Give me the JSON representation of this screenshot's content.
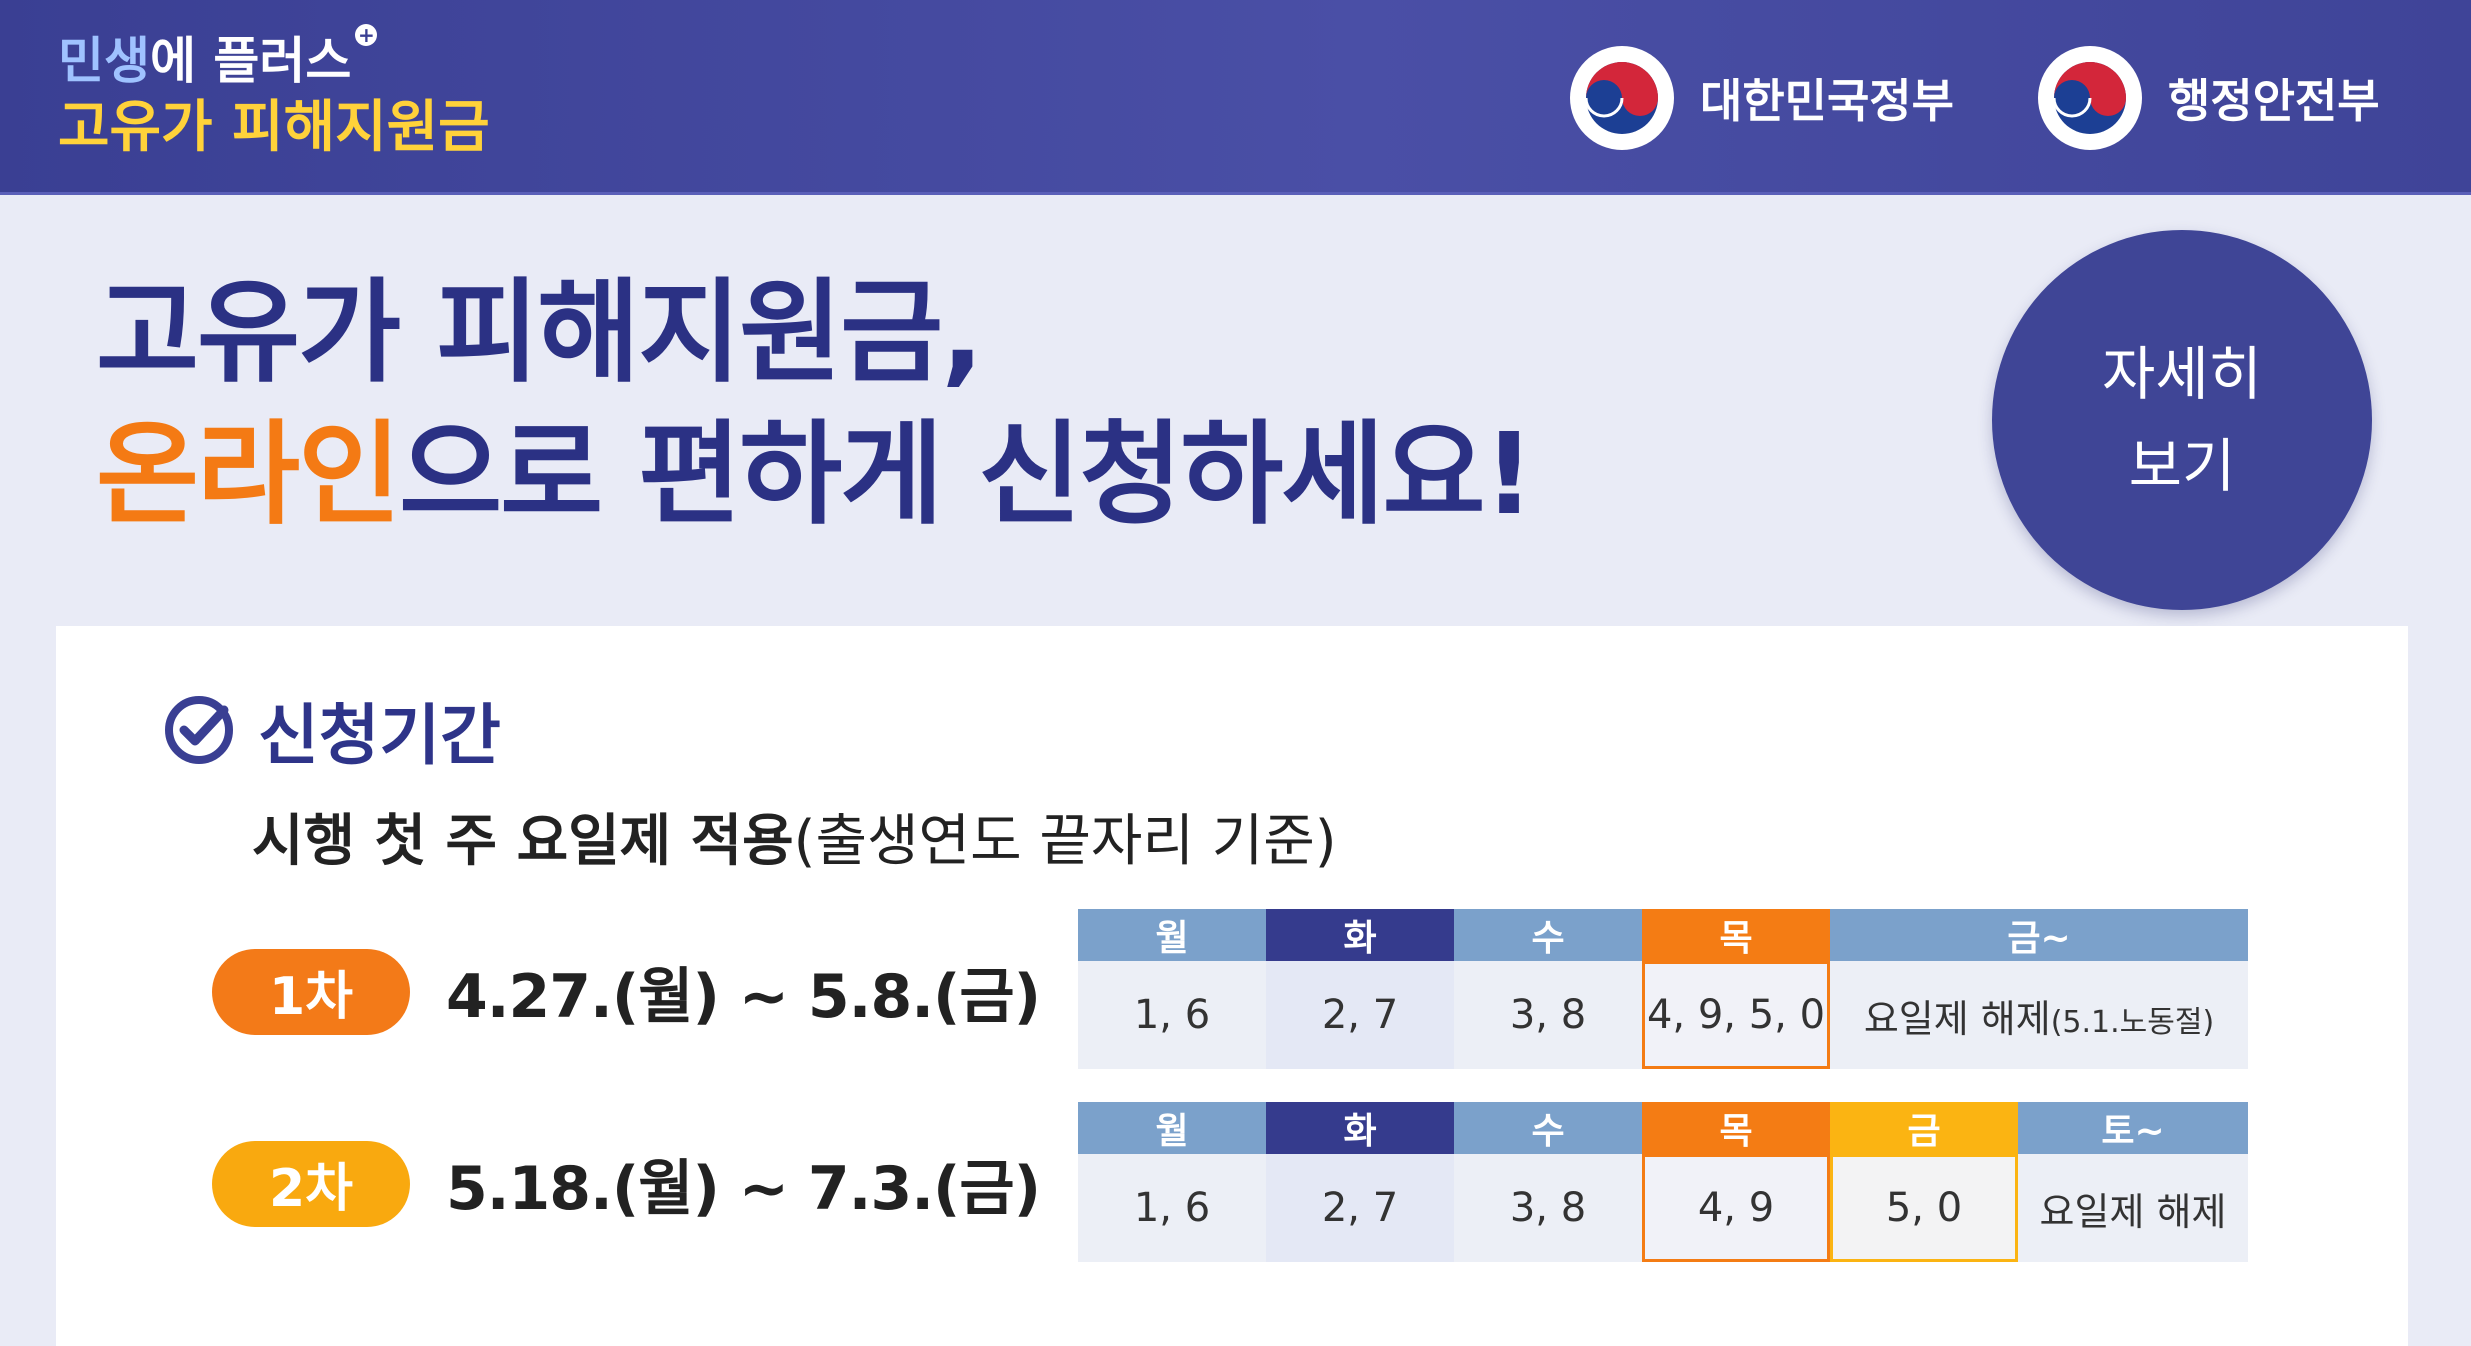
{
  "header": {
    "brand_part1": "민생",
    "brand_part2": "에 플러스",
    "brand_plus": "+",
    "brand_subtitle": "고유가 피해지원금",
    "gov_labels": [
      "대한민국정부",
      "행정안전부"
    ]
  },
  "headline": {
    "line1": "고유가 피해지원금,",
    "line2_highlight": "온라인",
    "line2_rest": "으로 편하게 신청하세요!"
  },
  "detail_button": {
    "line1": "자세히",
    "line2": "보기"
  },
  "section": {
    "title": "신청기간",
    "subtitle_bold": "시행 첫 주 요일제 적용",
    "subtitle_rest": "(출생연도 끝자리 기준)"
  },
  "rounds": [
    {
      "label": "1차",
      "period": "4.27.(월) ~ 5.8.(금)",
      "days": [
        "월",
        "화",
        "수",
        "목",
        "금~"
      ],
      "digits": [
        "1, 6",
        "2, 7",
        "3, 8",
        "4, 9, 5, 0"
      ],
      "note_main": "요일제 해제",
      "note_small": "(5.1.노동절)"
    },
    {
      "label": "2차",
      "period": "5.18.(월) ~ 7.3.(금)",
      "days": [
        "월",
        "화",
        "수",
        "목",
        "금",
        "토~"
      ],
      "digits": [
        "1, 6",
        "2, 7",
        "3, 8",
        "4, 9",
        "5, 0"
      ],
      "note_main": "요일제 해제"
    }
  ],
  "colors": {
    "navy": "#353b8d",
    "orange": "#f47c14",
    "yellow": "#fbb412",
    "header_blue": "#7ba1cb"
  }
}
